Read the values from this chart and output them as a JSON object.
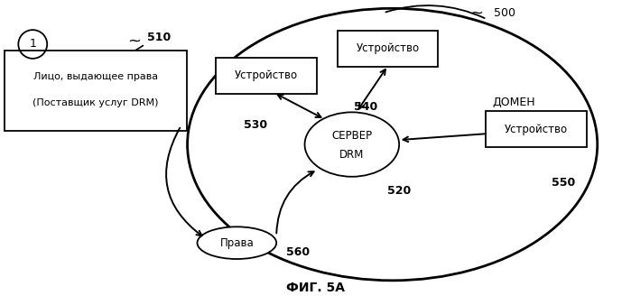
{
  "title": "ФИГ. 5А",
  "background_color": "#ffffff",
  "domain_label": "ДОМЕН",
  "label_500": "500",
  "label_510": "510",
  "label_520": "520",
  "label_530": "530",
  "label_540": "540",
  "label_550": "550",
  "label_560": "560",
  "box_issuer_text": [
    "Лицо, выдающее права",
    "(Поставщик услуг DRM)"
  ],
  "box_device1_text": "Устройство",
  "box_device2_text": "Устройство",
  "box_device3_text": "Устройство",
  "server_text": [
    "СЕРВЕР",
    "DRM"
  ],
  "rights_text": "Права",
  "circle1_label": "1"
}
